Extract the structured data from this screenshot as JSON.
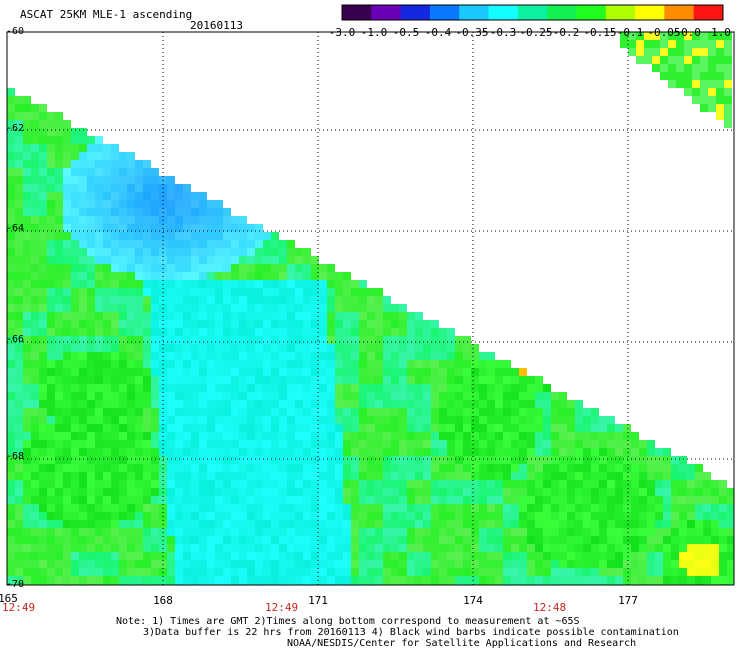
{
  "header": {
    "title": "ASCAT 25KM MLE-1 ascending",
    "date": "20160113"
  },
  "colorbar": {
    "labels": [
      "-3.0",
      "-1.0",
      "-0.5",
      "-0.4",
      "-0.35",
      "-0.3",
      "-0.25",
      "-0.2",
      "-0.15",
      "-0.1",
      "-0.05",
      "0.0",
      "1.0"
    ],
    "colors": [
      "#3a0050",
      "#6a00b8",
      "#1428e0",
      "#0a78ff",
      "#18c8ff",
      "#14ffff",
      "#0af2a0",
      "#14f050",
      "#1eff1e",
      "#b0ff00",
      "#ffff00",
      "#ff8c00",
      "#ff1414"
    ]
  },
  "map": {
    "lat_labels": [
      "-60",
      "-62",
      "-64",
      "-66",
      "-68",
      "-70"
    ],
    "lon_labels": [
      "165",
      "168",
      "171",
      "174",
      "177"
    ],
    "time_labels": [
      "12:49",
      "12:49",
      "12:48"
    ],
    "lat_range": [
      -70,
      -60
    ],
    "lon_range": [
      165,
      179.2
    ]
  },
  "notes": {
    "line1": "Note: 1) Times are GMT 2)Times along bottom correspond to measurement at ~65S",
    "line2": "3)Data buffer is 22 hrs from 20160113 4) Black wind barbs indicate possible contamination",
    "line3": "NOAA/NESDIS/Center for Satellite Applications and Research"
  }
}
